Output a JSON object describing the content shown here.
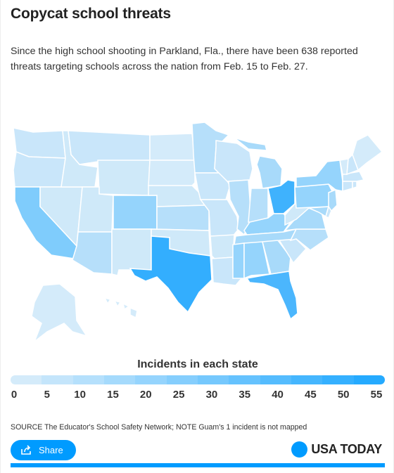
{
  "title": "Copycat school threats",
  "description": "Since the high school shooting in Parkland, Fla., there have been 638 reported threats targeting schools across the nation from Feb. 15 to Feb. 27.",
  "legend": {
    "title": "Incidents in each state",
    "labels": [
      "0",
      "5",
      "10",
      "15",
      "20",
      "25",
      "30",
      "35",
      "40",
      "45",
      "50",
      "55"
    ],
    "colors": [
      "#d4ebfa",
      "#c4e5fb",
      "#b5e0fc",
      "#a5dafc",
      "#95d4fd",
      "#85cefd",
      "#75c8fd",
      "#65c2fe",
      "#55bcfe",
      "#45b6fe",
      "#35b0ff",
      "#25aaff"
    ]
  },
  "map": {
    "state_colors": {
      "washington": "#c9e6fa",
      "oregon": "#c9e6fa",
      "california": "#7fccfc",
      "nevada": "#cfe9f9",
      "idaho": "#cfe9f9",
      "montana": "#c9e6fa",
      "wyoming": "#cfe9f9",
      "utah": "#cfe9f9",
      "arizona": "#b6dffa",
      "colorado": "#95d4fc",
      "new_mexico": "#cfe9f9",
      "north_dakota": "#d4ebfa",
      "south_dakota": "#d4ebfa",
      "nebraska": "#cfe9f9",
      "kansas": "#b6dffa",
      "oklahoma": "#cfe9f9",
      "texas": "#33aefe",
      "minnesota": "#b6dffa",
      "iowa": "#c9e6fa",
      "missouri": "#c9e6fa",
      "arkansas": "#cfe9f9",
      "louisiana": "#c9e6fa",
      "wisconsin": "#c9e6fa",
      "illinois": "#b6dffa",
      "michigan": "#a8dafa",
      "indiana": "#b6dffa",
      "ohio": "#3fb2fd",
      "kentucky": "#95d4fc",
      "tennessee": "#a8dafa",
      "mississippi": "#95d4fc",
      "alabama": "#95d4fc",
      "georgia": "#a8dafa",
      "florida": "#4bb6fd",
      "south_carolina": "#c9e6fa",
      "north_carolina": "#b6dffa",
      "virginia": "#a8dafa",
      "west_virginia": "#cfe9f9",
      "pennsylvania": "#95d4fc",
      "new_york": "#95d4fc",
      "new_jersey": "#a8dafa",
      "maryland": "#a8dafa",
      "delaware": "#c9e6fa",
      "connecticut": "#c9e6fa",
      "rhode_island": "#c9e6fa",
      "massachusetts": "#c9e6fa",
      "vermont": "#d4ebfa",
      "new_hampshire": "#c9e6fa",
      "maine": "#d4ebfa",
      "alaska": "#d4ebfa",
      "hawaii": "#d4ebfa"
    }
  },
  "source": "SOURCE The Educator's School Safety Network; NOTE Guam's 1 incident is not mapped",
  "share_label": "Share",
  "brand": "USA TODAY"
}
